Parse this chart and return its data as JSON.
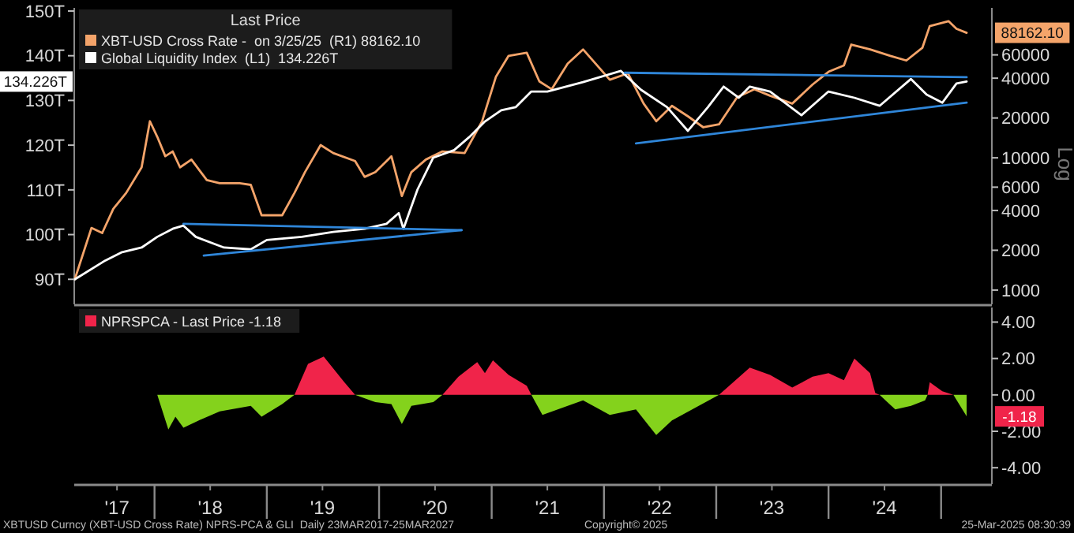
{
  "chart_data": [
    {
      "type": "line",
      "xlim": [
        "2017-04-15",
        "2025-06-15"
      ],
      "ylim": [
        84.4,
        150.7
      ],
      "yticks": [
        {
          "value": 90,
          "label": "90T"
        },
        {
          "value": 100,
          "label": "100T"
        },
        {
          "value": 110,
          "label": "110T"
        },
        {
          "value": 120,
          "label": "120T"
        },
        {
          "value": 130,
          "label": "130T"
        },
        {
          "value": 140,
          "label": "140T"
        },
        {
          "value": 150,
          "label": "150T"
        }
      ],
      "y2lim": [
        780,
        136000
      ],
      "y2ticks": [
        1000,
        2000,
        4000,
        6000,
        10000,
        20000,
        40000,
        60000
      ],
      "log": "y2",
      "y2label": "Log",
      "tick_labels": "y",
      "legend": "top left",
      "legend_title": "Last Price",
      "x": [
        "2017-04-17",
        "2017-06-10",
        "2017-07-15",
        "2017-08-20",
        "2017-10-01",
        "2017-11-20",
        "2017-12-17",
        "2018-01-10",
        "2018-02-05",
        "2018-03-01",
        "2018-03-25",
        "2018-05-01",
        "2018-06-20",
        "2018-08-01",
        "2018-10-05",
        "2018-11-10",
        "2018-12-15",
        "2019-02-20",
        "2019-04-01",
        "2019-05-05",
        "2019-06-25",
        "2019-08-05",
        "2019-10-15",
        "2019-11-15",
        "2019-12-20",
        "2020-02-10",
        "2020-03-15",
        "2020-04-15",
        "2020-06-01",
        "2020-07-25",
        "2020-10-05",
        "2020-12-01",
        "2021-01-15",
        "2021-02-25",
        "2021-04-25",
        "2021-06-05",
        "2021-07-15",
        "2021-09-05",
        "2021-10-25",
        "2022-01-20",
        "2022-03-20",
        "2022-05-10",
        "2022-06-20",
        "2022-08-10",
        "2022-10-01",
        "2022-11-20",
        "2023-01-10",
        "2023-03-10",
        "2023-05-05",
        "2023-06-25",
        "2023-09-05",
        "2023-11-10",
        "2024-01-01",
        "2024-02-20",
        "2024-03-15",
        "2024-05-15",
        "2024-07-20",
        "2024-09-10",
        "2024-11-01",
        "2024-11-25",
        "2025-01-25",
        "2025-02-20",
        "2025-03-25"
      ],
      "series": [
        {
          "name": "XBT-USD Cross Rate -  on 3/25/25  (R1) 88162.10",
          "color": "#f4a46a",
          "axis": "y2",
          "values": [
            1210,
            2950,
            2700,
            4110,
            5430,
            8470,
            18900,
            14400,
            10280,
            11170,
            8470,
            9700,
            6780,
            6420,
            6420,
            6240,
            3680,
            3680,
            5430,
            7790,
            12480,
            10870,
            9460,
            7170,
            7790,
            10280,
            5140,
            7790,
            9700,
            11170,
            10870,
            18900,
            41100,
            59000,
            62300,
            37800,
            33000,
            51500,
            66000,
            38900,
            43500,
            25700,
            18900,
            24700,
            20600,
            17000,
            17900,
            28700,
            33000,
            29500,
            25700,
            35800,
            44700,
            49900,
            71800,
            66000,
            59000,
            54400,
            67800,
            99000,
            108000,
            94500,
            88162.1
          ]
        },
        {
          "name": "Global Liquidity Index  (L1)  134.226T",
          "color": "#ffffff",
          "axis": "y",
          "x": [
            "2017-04-17",
            "2017-07-25",
            "2017-09-15",
            "2017-11-20",
            "2018-01-10",
            "2018-03-01",
            "2018-04-05",
            "2018-05-15",
            "2018-08-15",
            "2018-11-10",
            "2019-01-01",
            "2019-04-25",
            "2019-08-05",
            "2019-11-15",
            "2020-01-25",
            "2020-03-05",
            "2020-03-20",
            "2020-05-05",
            "2020-06-25",
            "2020-09-01",
            "2020-10-20",
            "2020-12-10",
            "2021-02-01",
            "2021-03-20",
            "2021-05-10",
            "2021-07-01",
            "2021-10-25",
            "2022-02-25",
            "2022-05-01",
            "2022-07-25",
            "2022-10-01",
            "2022-12-05",
            "2023-01-25",
            "2023-03-15",
            "2023-04-20",
            "2023-06-25",
            "2023-10-05",
            "2024-01-01",
            "2024-03-25",
            "2024-06-15",
            "2024-09-25",
            "2024-11-15",
            "2025-01-05",
            "2025-02-20",
            "2025-03-25"
          ],
          "values": [
            90.0,
            94.2,
            96.0,
            97.1,
            99.5,
            101.3,
            102.0,
            99.5,
            97.1,
            96.7,
            98.8,
            99.5,
            100.6,
            101.3,
            102.4,
            104.8,
            101.3,
            110.1,
            117.2,
            118.9,
            121.8,
            125.3,
            127.8,
            128.5,
            132.0,
            132.0,
            134.1,
            136.6,
            132.4,
            128.5,
            123.2,
            128.5,
            133.1,
            130.6,
            133.1,
            132.0,
            126.7,
            132.0,
            130.6,
            128.8,
            134.8,
            131.3,
            129.5,
            133.8,
            134.226
          ]
        },
        {
          "type": "line",
          "color": "#2f86d9",
          "axis": "y",
          "x": [
            "2018-04-05",
            "2020-09-25"
          ],
          "values": [
            102.4,
            101.0
          ]
        },
        {
          "type": "line",
          "color": "#2f86d9",
          "axis": "y",
          "x": [
            "2018-06-10",
            "2020-09-25"
          ],
          "values": [
            95.3,
            101.0
          ]
        },
        {
          "type": "line",
          "color": "#2f86d9",
          "axis": "y",
          "x": [
            "2022-03-10",
            "2025-03-25"
          ],
          "values": [
            136.2,
            135.2
          ]
        },
        {
          "type": "line",
          "color": "#2f86d9",
          "axis": "y",
          "x": [
            "2022-04-15",
            "2025-03-25"
          ],
          "values": [
            120.4,
            129.5
          ]
        }
      ],
      "annotations": [
        "88162.10",
        "134.226T"
      ]
    },
    {
      "type": "area",
      "xlim": [
        "2017-04-15",
        "2025-06-15"
      ],
      "xticks": [
        {
          "value": "2017-09-01",
          "label": "'17"
        },
        {
          "value": "2018-01-01",
          "label": null
        },
        {
          "value": "2018-07-01",
          "label": "'18"
        },
        {
          "value": "2019-01-01",
          "label": null
        },
        {
          "value": "2019-07-01",
          "label": "'19"
        },
        {
          "value": "2020-01-01",
          "label": null
        },
        {
          "value": "2020-07-01",
          "label": "'20"
        },
        {
          "value": "2021-01-01",
          "label": null
        },
        {
          "value": "2021-07-01",
          "label": "'21"
        },
        {
          "value": "2022-01-01",
          "label": null
        },
        {
          "value": "2022-07-01",
          "label": "'22"
        },
        {
          "value": "2023-01-01",
          "label": null
        },
        {
          "value": "2023-07-01",
          "label": "'23"
        },
        {
          "value": "2024-01-01",
          "label": null
        },
        {
          "value": "2024-07-01",
          "label": "'24"
        },
        {
          "value": "2025-01-01",
          "label": null
        }
      ],
      "y2lim": [
        -4.9,
        4.8
      ],
      "y2ticks": [
        {
          "value": 4,
          "label": "4.00"
        },
        {
          "value": 2,
          "label": "2.00"
        },
        {
          "value": 0,
          "label": "0.00"
        },
        {
          "value": -2,
          "label": "-2.00"
        },
        {
          "value": -4,
          "label": "-4.00"
        }
      ],
      "legend": "top left",
      "x": [
        "2018-01-10",
        "2018-02-15",
        "2018-03-10",
        "2018-04-05",
        "2018-05-25",
        "2018-08-01",
        "2018-11-10",
        "2018-12-15",
        "2019-02-20",
        "2019-04-01",
        "2019-05-15",
        "2019-07-05",
        "2019-09-10",
        "2019-10-15",
        "2019-12-20",
        "2020-02-10",
        "2020-03-15",
        "2020-04-15",
        "2020-06-25",
        "2020-07-25",
        "2020-09-15",
        "2020-11-15",
        "2020-12-10",
        "2021-01-05",
        "2021-02-25",
        "2021-04-25",
        "2021-05-10",
        "2021-06-15",
        "2021-09-05",
        "2021-10-25",
        "2022-01-20",
        "2022-04-15",
        "2022-06-20",
        "2022-08-10",
        "2022-11-05",
        "2023-01-10",
        "2023-04-20",
        "2023-06-25",
        "2023-09-05",
        "2023-11-10",
        "2024-01-01",
        "2024-02-20",
        "2024-03-25",
        "2024-05-15",
        "2024-06-01",
        "2024-06-15",
        "2024-08-05",
        "2024-09-25",
        "2024-11-10",
        "2024-11-18",
        "2024-11-25",
        "2025-01-05",
        "2025-02-10",
        "2025-03-25"
      ],
      "series": [
        {
          "color": "#84d21c",
          "axis": "y2",
          "values": [
            0,
            -1.9,
            -1.2,
            -1.8,
            -1.4,
            -0.9,
            -0.6,
            -1.2,
            -0.5,
            0,
            null,
            null,
            null,
            0,
            -0.4,
            -0.5,
            -1.6,
            -0.6,
            -0.4,
            0,
            null,
            null,
            null,
            null,
            null,
            null,
            0,
            -1.1,
            -0.6,
            -0.3,
            -1.1,
            -0.8,
            -2.2,
            -1.4,
            -0.6,
            0,
            null,
            null,
            null,
            null,
            null,
            null,
            null,
            null,
            null,
            0,
            -0.8,
            -0.6,
            -0.3,
            0,
            null,
            null,
            0,
            -1.18
          ]
        },
        {
          "name": "NPRSPCA - Last Price -1.18",
          "color": "#f0244a",
          "axis": "y2",
          "values": [
            null,
            null,
            null,
            null,
            null,
            null,
            null,
            null,
            null,
            0,
            1.7,
            2.1,
            0.7,
            0,
            null,
            null,
            null,
            null,
            null,
            0,
            1.0,
            1.8,
            1.2,
            1.9,
            1.1,
            0.5,
            0,
            null,
            null,
            null,
            null,
            null,
            null,
            null,
            null,
            0,
            1.5,
            1.1,
            0.4,
            1.0,
            1.2,
            0.8,
            2.0,
            1.2,
            0.1,
            0,
            null,
            null,
            null,
            0,
            0.7,
            0.2,
            0,
            null
          ]
        }
      ],
      "annotations": [
        "-1.18",
        "XBTUSD Curncy (XBT-USD Cross Rate) NPRS-PCA & GLI  Daily 23MAR2017-25MAR2027",
        "Copyright© 2025",
        "25-Mar-2025 08:30:39"
      ]
    }
  ]
}
